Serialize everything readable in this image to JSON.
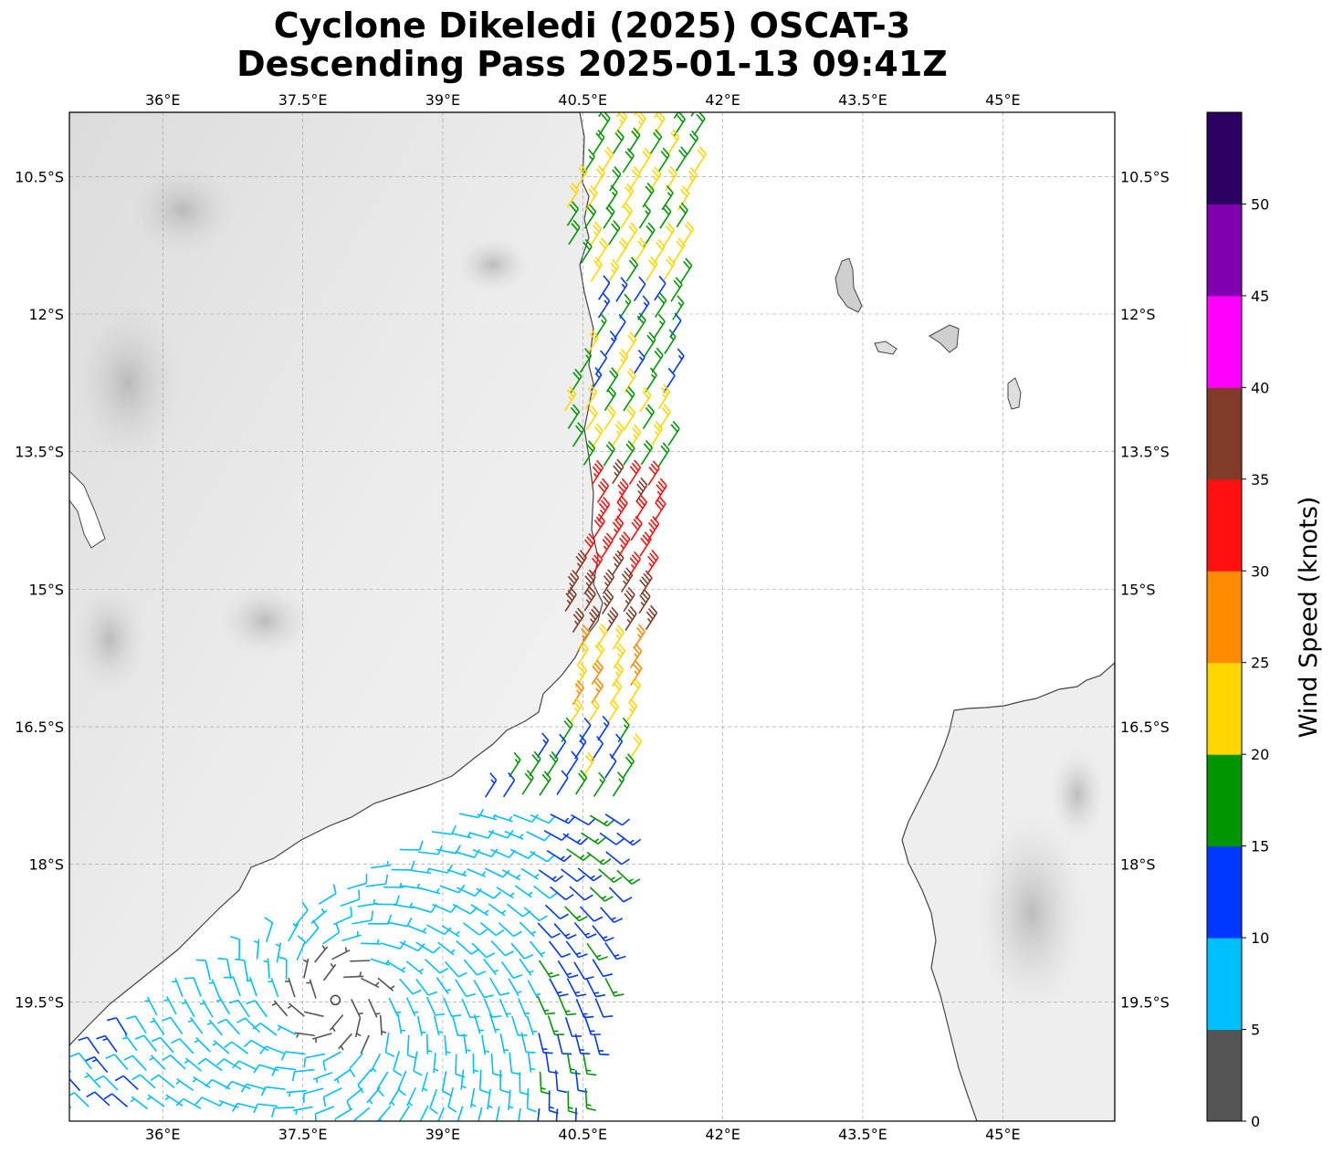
{
  "title": {
    "line1": "Cyclone Dikeledi (2025) OSCAT-3",
    "line2": "Descending Pass 2025-01-13 09:41Z"
  },
  "map": {
    "lon_range": [
      35.0,
      46.2
    ],
    "lat_range": [
      -20.8,
      -9.8
    ],
    "lon_ticks": [
      {
        "value": 36.0,
        "label": "36°E"
      },
      {
        "value": 37.5,
        "label": "37.5°E"
      },
      {
        "value": 39.0,
        "label": "39°E"
      },
      {
        "value": 40.5,
        "label": "40.5°E"
      },
      {
        "value": 42.0,
        "label": "42°E"
      },
      {
        "value": 43.5,
        "label": "43.5°E"
      },
      {
        "value": 45.0,
        "label": "45°E"
      }
    ],
    "lat_ticks": [
      {
        "value": -10.5,
        "label": "10.5°S"
      },
      {
        "value": -12.0,
        "label": "12°S"
      },
      {
        "value": -13.5,
        "label": "13.5°S"
      },
      {
        "value": -15.0,
        "label": "15°S"
      },
      {
        "value": -16.5,
        "label": "16.5°S"
      },
      {
        "value": -18.0,
        "label": "18°S"
      },
      {
        "value": -19.5,
        "label": "19.5°S"
      }
    ]
  },
  "colorbar": {
    "label": "Wind Speed (knots)",
    "ticks": [
      "0",
      "5",
      "10",
      "15",
      "20",
      "25",
      "30",
      "35",
      "40",
      "45",
      "50"
    ],
    "bins": [
      {
        "range": "0-5",
        "color": "#555555"
      },
      {
        "range": "5-10",
        "color": "#00bfff"
      },
      {
        "range": "10-15",
        "color": "#0038ff"
      },
      {
        "range": "15-20",
        "color": "#009600"
      },
      {
        "range": "20-25",
        "color": "#ffd700"
      },
      {
        "range": "25-30",
        "color": "#ff8c00"
      },
      {
        "range": "30-35",
        "color": "#ff1010"
      },
      {
        "range": "35-40",
        "color": "#803c28"
      },
      {
        "range": "40-45",
        "color": "#ff00ff"
      },
      {
        "range": "45-50",
        "color": "#8000b0"
      },
      {
        "range": "50+",
        "color": "#2b0060"
      }
    ]
  },
  "storm_center": {
    "lon": 37.85,
    "lat": -19.48
  },
  "chart_data": {
    "type": "wind-barb map",
    "variable": "Wind Speed (knots)",
    "units": "knots"
  }
}
